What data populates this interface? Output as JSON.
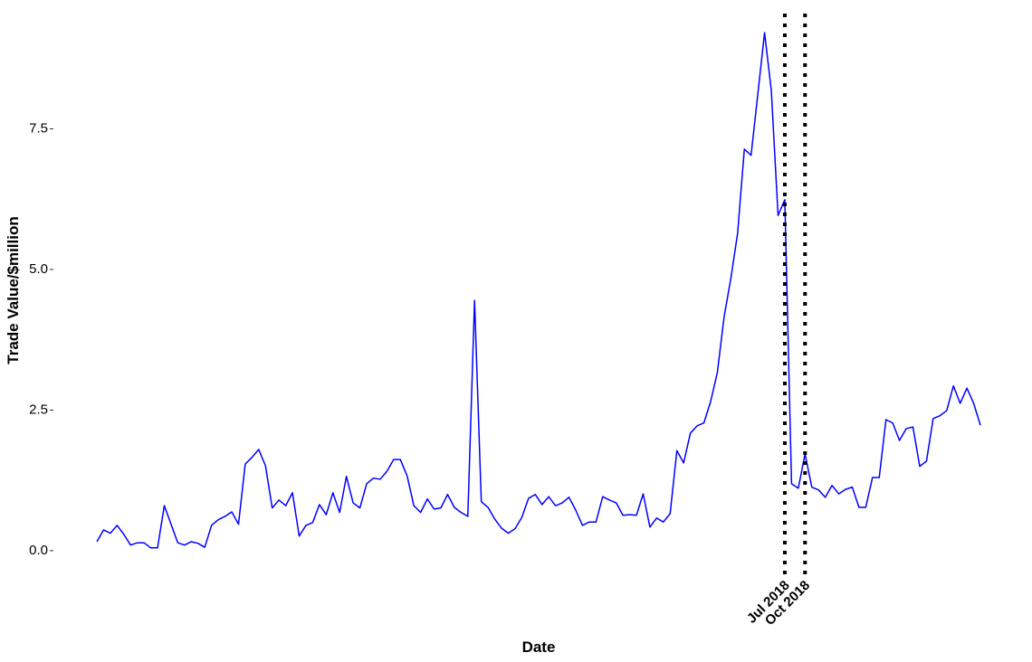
{
  "chart_data": {
    "type": "line",
    "x_label": "Date",
    "y_label": "Trade Value/$million",
    "x": [
      "2010-01",
      "2010-02",
      "2010-03",
      "2010-04",
      "2010-05",
      "2010-06",
      "2010-07",
      "2010-08",
      "2010-09",
      "2010-10",
      "2010-11",
      "2010-12",
      "2011-01",
      "2011-02",
      "2011-03",
      "2011-04",
      "2011-05",
      "2011-06",
      "2011-07",
      "2011-08",
      "2011-09",
      "2011-10",
      "2011-11",
      "2011-12",
      "2012-01",
      "2012-02",
      "2012-03",
      "2012-04",
      "2012-05",
      "2012-06",
      "2012-07",
      "2012-08",
      "2012-09",
      "2012-10",
      "2012-11",
      "2012-12",
      "2013-01",
      "2013-02",
      "2013-03",
      "2013-04",
      "2013-05",
      "2013-06",
      "2013-07",
      "2013-08",
      "2013-09",
      "2013-10",
      "2013-11",
      "2013-12",
      "2014-01",
      "2014-02",
      "2014-03",
      "2014-04",
      "2014-05",
      "2014-06",
      "2014-07",
      "2014-08",
      "2014-09",
      "2014-10",
      "2014-11",
      "2014-12",
      "2015-01",
      "2015-02",
      "2015-03",
      "2015-04",
      "2015-05",
      "2015-06",
      "2015-07",
      "2015-08",
      "2015-09",
      "2015-10",
      "2015-11",
      "2015-12",
      "2016-01",
      "2016-02",
      "2016-03",
      "2016-04",
      "2016-05",
      "2016-06",
      "2016-07",
      "2016-08",
      "2016-09",
      "2016-10",
      "2016-11",
      "2016-12",
      "2017-01",
      "2017-02",
      "2017-03",
      "2017-04",
      "2017-05",
      "2017-06",
      "2017-07",
      "2017-08",
      "2017-09",
      "2017-10",
      "2017-11",
      "2017-12",
      "2018-01",
      "2018-02",
      "2018-03",
      "2018-04",
      "2018-05",
      "2018-06",
      "2018-07",
      "2018-08",
      "2018-09",
      "2018-10",
      "2018-11",
      "2018-12",
      "2019-01",
      "2019-02",
      "2019-03",
      "2019-04",
      "2019-05",
      "2019-06",
      "2019-07",
      "2019-08",
      "2019-09",
      "2019-10",
      "2019-11",
      "2019-12",
      "2020-01",
      "2020-02",
      "2020-03",
      "2020-04",
      "2020-05",
      "2020-06",
      "2020-07",
      "2020-08",
      "2020-09",
      "2020-10",
      "2020-11",
      "2020-12"
    ],
    "values": [
      0.16,
      0.37,
      0.31,
      0.45,
      0.29,
      0.1,
      0.14,
      0.14,
      0.05,
      0.05,
      0.8,
      0.47,
      0.14,
      0.1,
      0.16,
      0.13,
      0.06,
      0.45,
      0.55,
      0.61,
      0.69,
      0.47,
      1.54,
      1.66,
      1.8,
      1.51,
      0.76,
      0.9,
      0.8,
      1.03,
      0.26,
      0.45,
      0.5,
      0.82,
      0.64,
      1.03,
      0.68,
      1.32,
      0.85,
      0.76,
      1.19,
      1.29,
      1.27,
      1.41,
      1.62,
      1.62,
      1.33,
      0.8,
      0.68,
      0.92,
      0.74,
      0.76,
      1.0,
      0.77,
      0.68,
      0.61,
      4.45,
      0.87,
      0.77,
      0.56,
      0.4,
      0.31,
      0.39,
      0.59,
      0.93,
      1.0,
      0.82,
      0.96,
      0.8,
      0.85,
      0.95,
      0.72,
      0.45,
      0.51,
      0.51,
      0.96,
      0.9,
      0.85,
      0.63,
      0.64,
      0.63,
      1.01,
      0.42,
      0.58,
      0.51,
      0.66,
      1.78,
      1.56,
      2.09,
      2.22,
      2.27,
      2.65,
      3.17,
      4.16,
      4.84,
      5.64,
      7.14,
      7.03,
      8.12,
      9.21,
      8.18,
      5.96,
      6.24,
      1.19,
      1.11,
      1.72,
      1.13,
      1.08,
      0.95,
      1.16,
      1.01,
      1.09,
      1.13,
      0.77,
      0.77,
      1.3,
      1.3,
      2.33,
      2.27,
      1.96,
      2.17,
      2.2,
      1.5,
      1.59,
      2.35,
      2.4,
      2.49,
      2.93,
      2.62,
      2.89,
      2.62,
      2.23
    ],
    "color": "#0000ff",
    "xlim": [
      "2010-01",
      "2020-12"
    ],
    "xticks": [
      {
        "value": "2018-07",
        "label": "Jul 2018"
      },
      {
        "value": "2018-10",
        "label": "Oct 2018"
      }
    ],
    "ylim": [
      -0.5,
      9.55
    ],
    "yticks": [
      {
        "value": 0,
        "label": "0.0"
      },
      2.5,
      {
        "value": 5,
        "label": "5.0"
      },
      7.5
    ]
  }
}
